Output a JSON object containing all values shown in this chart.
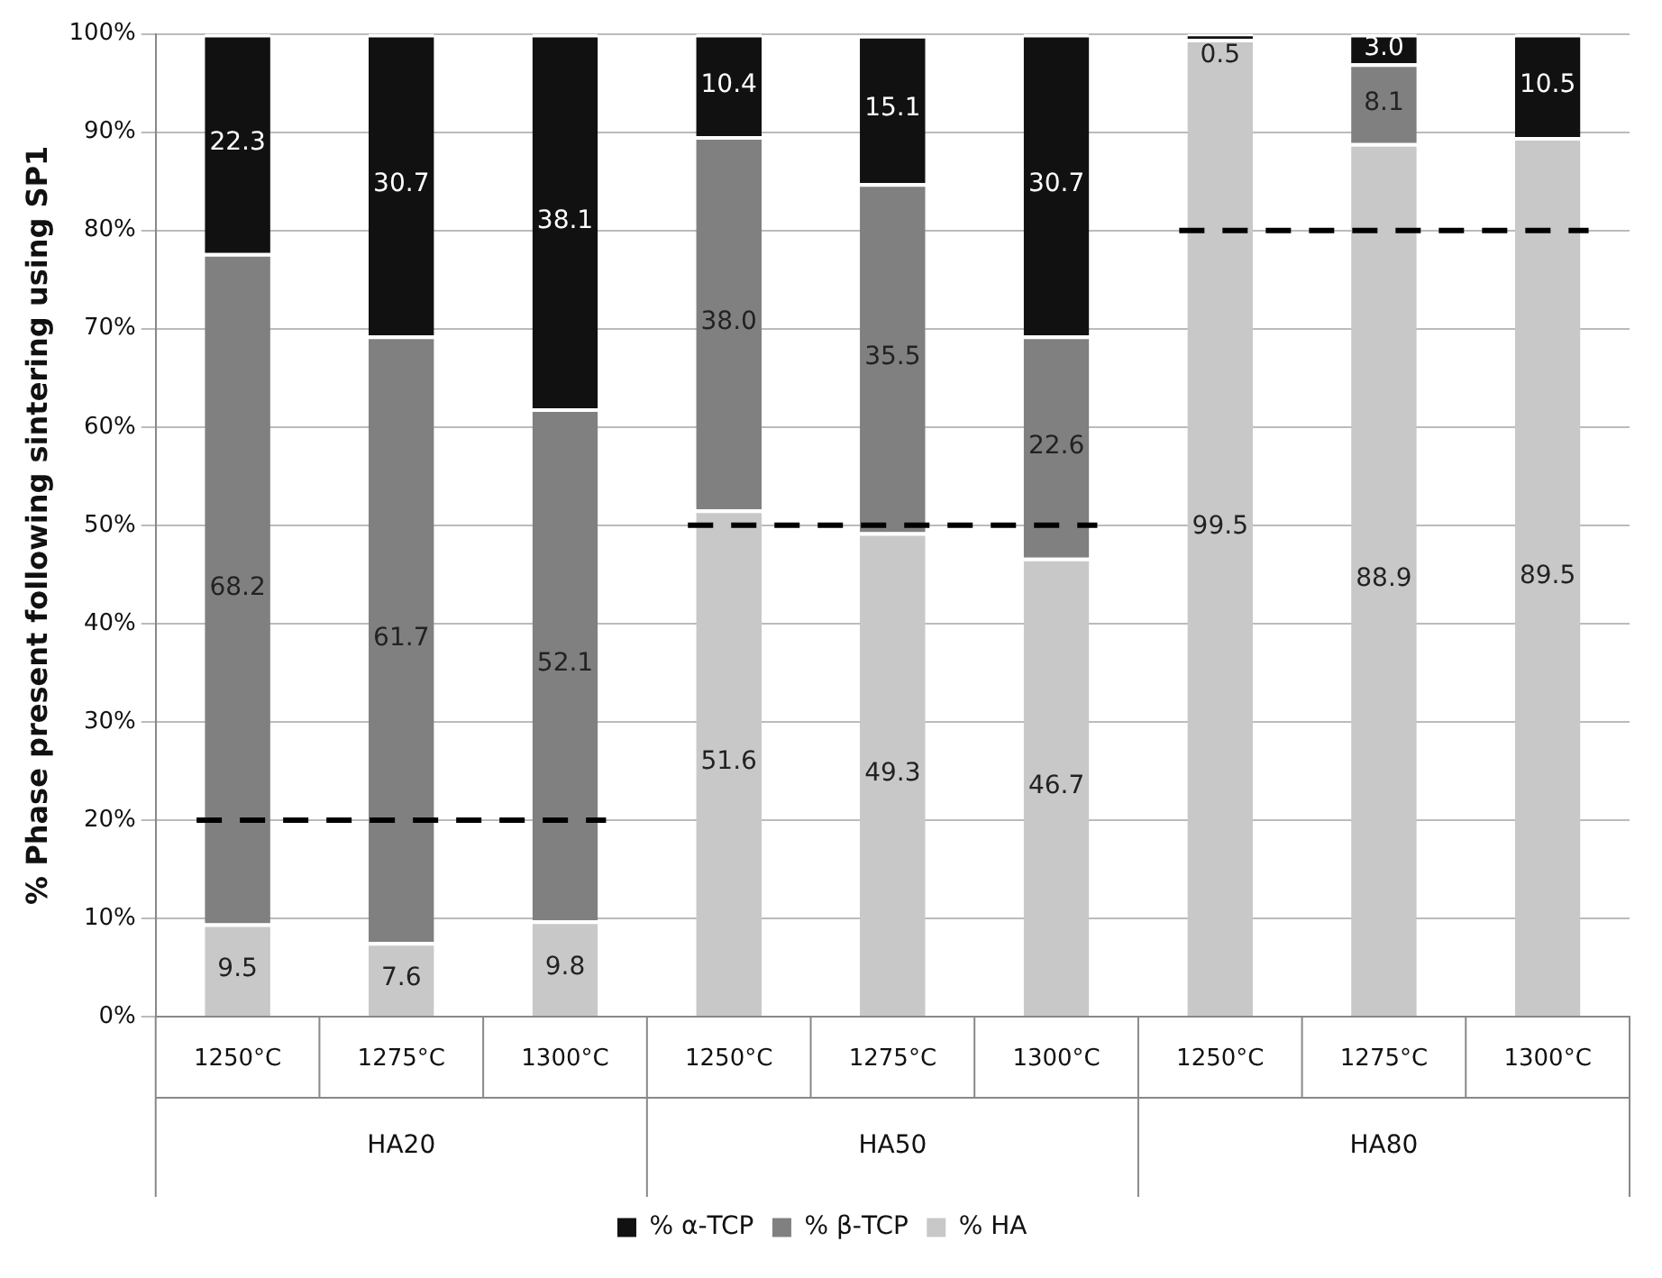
{
  "chart_data": {
    "type": "bar",
    "stacked": true,
    "ylabel": "% Phase present following sintering using SP1",
    "categories": [
      "1250°C",
      "1275°C",
      "1300°C",
      "1250°C",
      "1275°C",
      "1300°C",
      "1250°C",
      "1275°C",
      "1300°C"
    ],
    "annotations": [
      "HA20",
      "HA50",
      "HA80"
    ],
    "series": [
      {
        "name": "% HA",
        "color": "#c8c8c8",
        "values": [
          9.5,
          7.6,
          9.8,
          51.6,
          49.3,
          46.7,
          99.5,
          88.9,
          89.5
        ],
        "value_labels": [
          "9.5",
          "7.6",
          "9.8",
          "51.6",
          "49.3",
          "46.7",
          "99.5",
          "88.9",
          "89.5"
        ]
      },
      {
        "name": "% β-TCP",
        "color": "#808080",
        "values": [
          68.2,
          61.7,
          52.1,
          38.0,
          35.5,
          22.6,
          0,
          8.1,
          0
        ],
        "value_labels": [
          "68.2",
          "61.7",
          "52.1",
          "38.0",
          "35.5",
          "22.6",
          null,
          "8.1",
          null
        ]
      },
      {
        "name": "% α-TCP",
        "color": "#111111",
        "values": [
          22.3,
          30.7,
          38.1,
          10.4,
          15.1,
          30.7,
          0.5,
          3.0,
          10.5
        ],
        "value_labels": [
          "22.3",
          "30.7",
          "38.1",
          "10.4",
          "15.1",
          "30.7",
          "0.5",
          "3.0",
          "10.5"
        ]
      }
    ],
    "ylim": [
      0,
      100
    ],
    "yticks": [
      {
        "value": 0,
        "label": "0%"
      },
      {
        "value": 10,
        "label": "10%"
      },
      {
        "value": 20,
        "label": "20%"
      },
      {
        "value": 30,
        "label": "30%"
      },
      {
        "value": 40,
        "label": "40%"
      },
      {
        "value": 50,
        "label": "50%"
      },
      {
        "value": 60,
        "label": "60%"
      },
      {
        "value": 70,
        "label": "70%"
      },
      {
        "value": 80,
        "label": "80%"
      },
      {
        "value": 90,
        "label": "90%"
      },
      {
        "value": 100,
        "label": "100%"
      }
    ],
    "ref_lines": [
      {
        "axis": "y",
        "value": 20,
        "label": null,
        "color": "#000000",
        "line_style": "dashed"
      },
      {
        "axis": "y",
        "value": 50,
        "label": null,
        "color": "#000000",
        "line_style": "dashed"
      },
      {
        "axis": "y",
        "value": 80,
        "label": null,
        "color": "#000000",
        "line_style": "dashed"
      }
    ],
    "grid": "y",
    "legend": "bottom"
  }
}
